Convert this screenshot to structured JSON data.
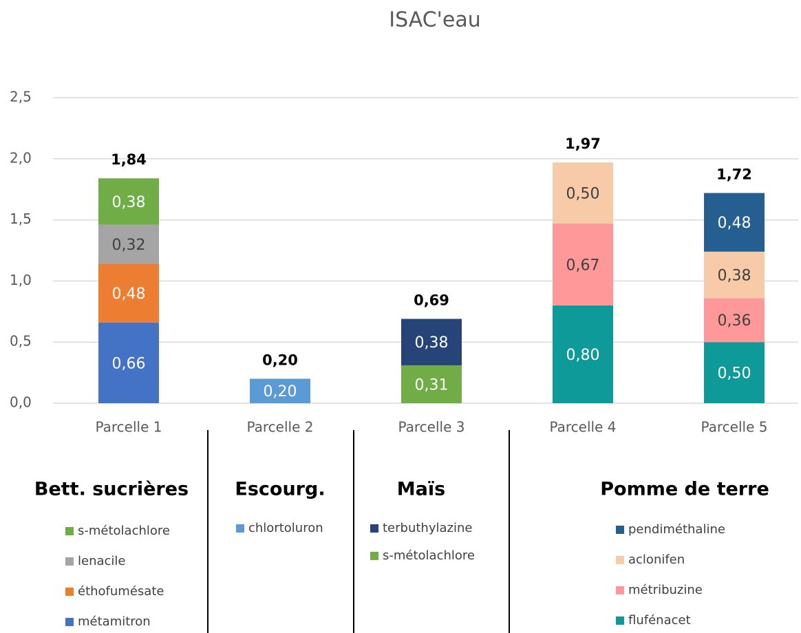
{
  "chart_data": {
    "type": "stacked_bar",
    "title": "ISAC'eau",
    "ylim": [
      0,
      2.5
    ],
    "yticks": [
      {
        "value": 0,
        "label": "0,0"
      },
      {
        "value": 0.5,
        "label": "0,5"
      },
      {
        "value": 1,
        "label": "1,0"
      },
      {
        "value": 1.5,
        "label": "1,5"
      },
      {
        "value": 2,
        "label": "2,0"
      },
      {
        "value": 2.5,
        "label": "2,5"
      }
    ],
    "grid": true,
    "crops": [
      {
        "name": "Bett. sucrières",
        "categories": [
          "Parcelle 1"
        ],
        "totals": [
          1.84
        ],
        "total_labels": [
          "1,84"
        ],
        "series": [
          {
            "name": "métamitron",
            "color": "#4472c4",
            "values": [
              0.66
            ],
            "value_labels": [
              "0,66"
            ]
          },
          {
            "name": "éthofumésate",
            "color": "#ed7d31",
            "values": [
              0.48
            ],
            "value_labels": [
              "0,48"
            ]
          },
          {
            "name": "lenacile",
            "color": "#a5a5a5",
            "values": [
              0.32
            ],
            "value_labels": [
              "0,32"
            ]
          },
          {
            "name": "s-métolachlore",
            "color": "#70ad47",
            "values": [
              0.38
            ],
            "value_labels": [
              "0,38"
            ]
          }
        ]
      },
      {
        "name": "Escourg.",
        "categories": [
          "Parcelle 2"
        ],
        "totals": [
          0.2
        ],
        "total_labels": [
          "0,20"
        ],
        "series": [
          {
            "name": "chlortoluron",
            "color": "#5b9bd5",
            "values": [
              0.2
            ],
            "value_labels": [
              "0,20"
            ]
          }
        ]
      },
      {
        "name": "Maïs",
        "categories": [
          "Parcelle 3"
        ],
        "totals": [
          0.69
        ],
        "total_labels": [
          "0,69"
        ],
        "series": [
          {
            "name": "s-métolachlore",
            "color": "#70ad47",
            "values": [
              0.31
            ],
            "value_labels": [
              "0,31"
            ]
          },
          {
            "name": "terbuthylazine",
            "color": "#264478",
            "values": [
              0.38
            ],
            "value_labels": [
              "0,38"
            ]
          }
        ]
      },
      {
        "name": "Pomme de terre",
        "categories": [
          "Parcelle 4",
          "Parcelle 5"
        ],
        "totals": [
          1.97,
          1.72
        ],
        "total_labels": [
          "1,97",
          "1,72"
        ],
        "series": [
          {
            "name": "flufénacet",
            "color": "#0e9a98",
            "values": [
              0.8,
              0.5
            ],
            "value_labels": [
              "0,80",
              "0,50"
            ]
          },
          {
            "name": "métribuzine",
            "color": "#ff9999",
            "values": [
              0.67,
              0.36
            ],
            "value_labels": [
              "0,67",
              "0,36"
            ]
          },
          {
            "name": "aclonifen",
            "color": "#f8cba8",
            "values": [
              0.5,
              0.38
            ],
            "value_labels": [
              "0,50",
              "0,38"
            ]
          },
          {
            "name": "pendiméthaline",
            "color": "#255e91",
            "values": [
              null,
              0.48
            ],
            "value_labels": [
              null,
              "0,48"
            ]
          }
        ]
      }
    ]
  }
}
